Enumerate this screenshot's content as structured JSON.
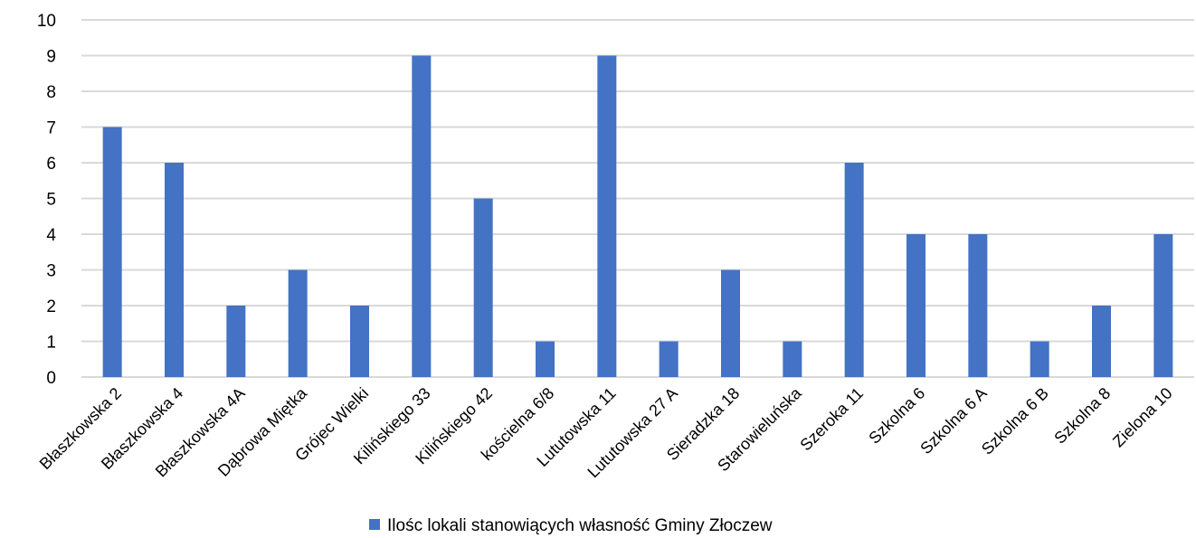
{
  "chart_data": {
    "type": "bar",
    "title": "",
    "xlabel": "",
    "ylabel": "",
    "ylim": [
      0,
      10
    ],
    "yticks": [
      "0",
      "1",
      "2",
      "3",
      "4",
      "5",
      "6",
      "7",
      "8",
      "9",
      "10"
    ],
    "grid": true,
    "legend_position": "bottom",
    "categories": [
      "Błaszkowska  2",
      "Błaszkowska 4",
      "Błaszkowska 4A",
      "Dąbrowa Miętka",
      "Grójec Wielki",
      "Kilińskiego 33",
      "Kilińskiego 42",
      "kościelna 6/8",
      "Lututowska 11",
      "Lututowska 27 A",
      "Sieradzka 18",
      "Starowieluńska",
      "Szeroka 11",
      "Szkolna 6",
      "Szkolna 6 A",
      "Szkolna 6 B",
      "Szkolna 8",
      "Zielona 10"
    ],
    "series": [
      {
        "name": "Ilośc lokali stanowiących własność Gminy Złoczew",
        "color": "#4472c4",
        "values": [
          7,
          6,
          2,
          3,
          2,
          9,
          5,
          1,
          9,
          1,
          3,
          1,
          6,
          4,
          4,
          1,
          2,
          4
        ]
      }
    ]
  }
}
